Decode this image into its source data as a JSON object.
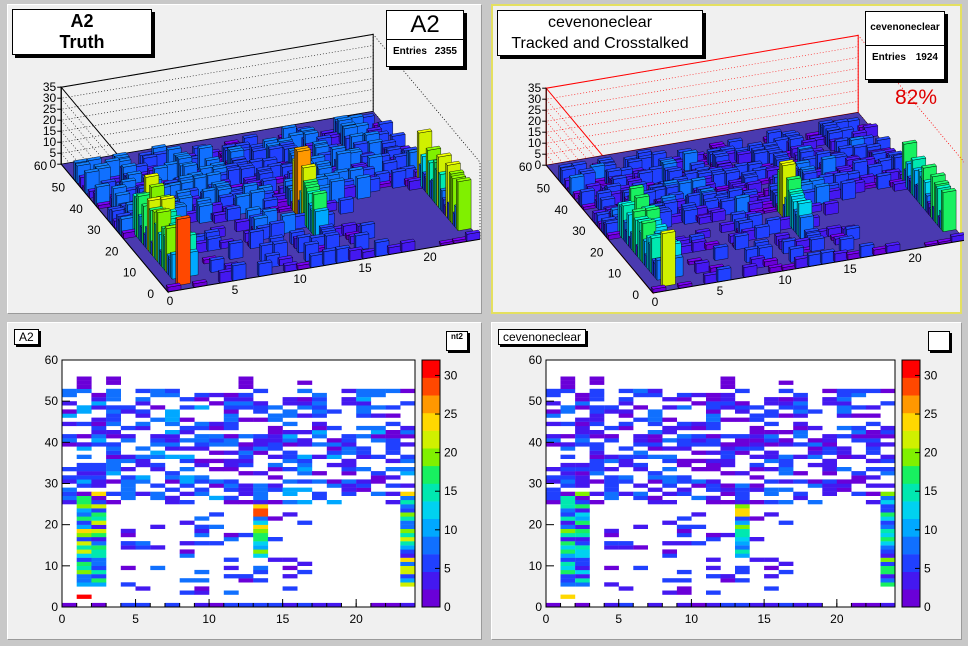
{
  "pads": {
    "a2_lego": {
      "title_line1": "A2",
      "title_line2": "Truth",
      "stats": {
        "name": "A2",
        "entries_label": "Entries",
        "entries_value": "2355"
      }
    },
    "cev_lego": {
      "title_line1": "cevenoneclear",
      "title_line2": "Tracked and Crosstalked",
      "stats": {
        "name": "cevenoneclear",
        "entries_label": "Entries",
        "entries_value": "1924"
      },
      "efficiency": "82%"
    },
    "a2_colz": {
      "tag": "A2",
      "palette_tag": "nt2"
    },
    "cev_colz": {
      "tag": "cevenoneclear",
      "palette_tag": ""
    }
  },
  "chart_data": [
    {
      "type": "lego",
      "name": "A2",
      "entries": 2355,
      "xlim": [
        0,
        24
      ],
      "ylim": [
        0,
        60
      ],
      "zlim": [
        0,
        35
      ],
      "xticks": [
        0,
        5,
        10,
        15,
        20
      ],
      "yticks": [
        0,
        10,
        20,
        30,
        40,
        50,
        60
      ],
      "zticks": [
        0,
        5,
        10,
        15,
        20,
        25,
        30,
        35
      ]
    },
    {
      "type": "lego",
      "name": "cevenoneclear",
      "entries": 1924,
      "xlim": [
        0,
        24
      ],
      "ylim": [
        0,
        60
      ],
      "zlim": [
        0,
        35
      ],
      "xticks": [
        0,
        5,
        10,
        15,
        20
      ],
      "yticks": [
        0,
        10,
        20,
        30,
        40,
        50,
        60
      ],
      "zticks": [
        0,
        5,
        10,
        15,
        20,
        25,
        30,
        35
      ]
    },
    {
      "type": "heatmap",
      "name": "A2",
      "xlim": [
        0,
        24
      ],
      "ylim": [
        0,
        60
      ],
      "zlim": [
        0,
        32
      ],
      "xticks": [
        0,
        5,
        10,
        15,
        20
      ],
      "yticks": [
        0,
        10,
        20,
        30,
        40,
        50,
        60
      ],
      "zticks": [
        0,
        5,
        10,
        15,
        20,
        25,
        30
      ]
    },
    {
      "type": "heatmap",
      "name": "cevenoneclear",
      "xlim": [
        0,
        24
      ],
      "ylim": [
        0,
        60
      ],
      "zlim": [
        0,
        32
      ],
      "xticks": [
        0,
        5,
        10,
        15,
        20
      ],
      "yticks": [
        0,
        10,
        20,
        30,
        40,
        50,
        60
      ],
      "zticks": [
        0,
        5,
        10,
        15,
        20,
        25,
        30
      ]
    }
  ]
}
